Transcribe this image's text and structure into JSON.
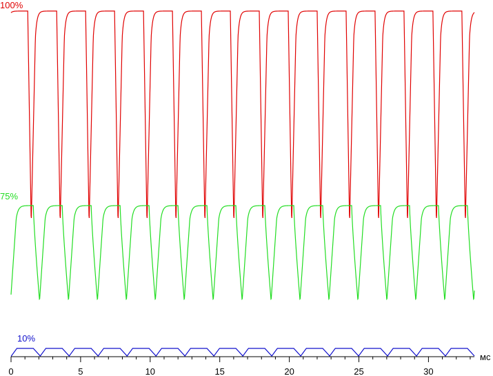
{
  "chart_data": {
    "type": "line",
    "title": "",
    "xlabel": "мс",
    "ylabel": "",
    "xlim": [
      0,
      33.3
    ],
    "xticks": [
      0,
      5,
      10,
      15,
      20,
      25,
      30
    ],
    "tick_labels": [
      "0",
      "5",
      "10",
      "15",
      "20",
      "25",
      "30"
    ],
    "unit_label": "мс",
    "grid": false,
    "legend": "inline labels, top-left of each trace",
    "flicker_period_ms": 2.08,
    "series": [
      {
        "name": "100%",
        "color": "#e00000",
        "high_level": 100,
        "low_level": 3,
        "pulses": 16,
        "sample_points": [
          {
            "x": 0.0,
            "y": 96
          },
          {
            "x": 1.2,
            "y": 97
          },
          {
            "x": 1.45,
            "y": 3
          },
          {
            "x": 1.8,
            "y": 98
          },
          {
            "x": 3.3,
            "y": 99
          },
          {
            "x": 3.55,
            "y": 3
          },
          {
            "x": 3.9,
            "y": 98
          }
        ]
      },
      {
        "name": "75%",
        "color": "#22dd22",
        "high_level": 75,
        "low_level": 32,
        "pulses": 16,
        "sample_points": [
          {
            "x": 0.0,
            "y": 34
          },
          {
            "x": 0.3,
            "y": 74
          },
          {
            "x": 1.6,
            "y": 75
          },
          {
            "x": 2.1,
            "y": 32
          },
          {
            "x": 2.5,
            "y": 73
          },
          {
            "x": 3.7,
            "y": 75
          }
        ]
      },
      {
        "name": "10%",
        "color": "#1010cc",
        "high_level": 10,
        "low_level": 7,
        "pulses": 16,
        "sample_points": [
          {
            "x": 0.0,
            "y": 7
          },
          {
            "x": 0.3,
            "y": 10
          },
          {
            "x": 1.6,
            "y": 10
          },
          {
            "x": 2.1,
            "y": 7
          },
          {
            "x": 2.5,
            "y": 10
          }
        ]
      }
    ]
  }
}
